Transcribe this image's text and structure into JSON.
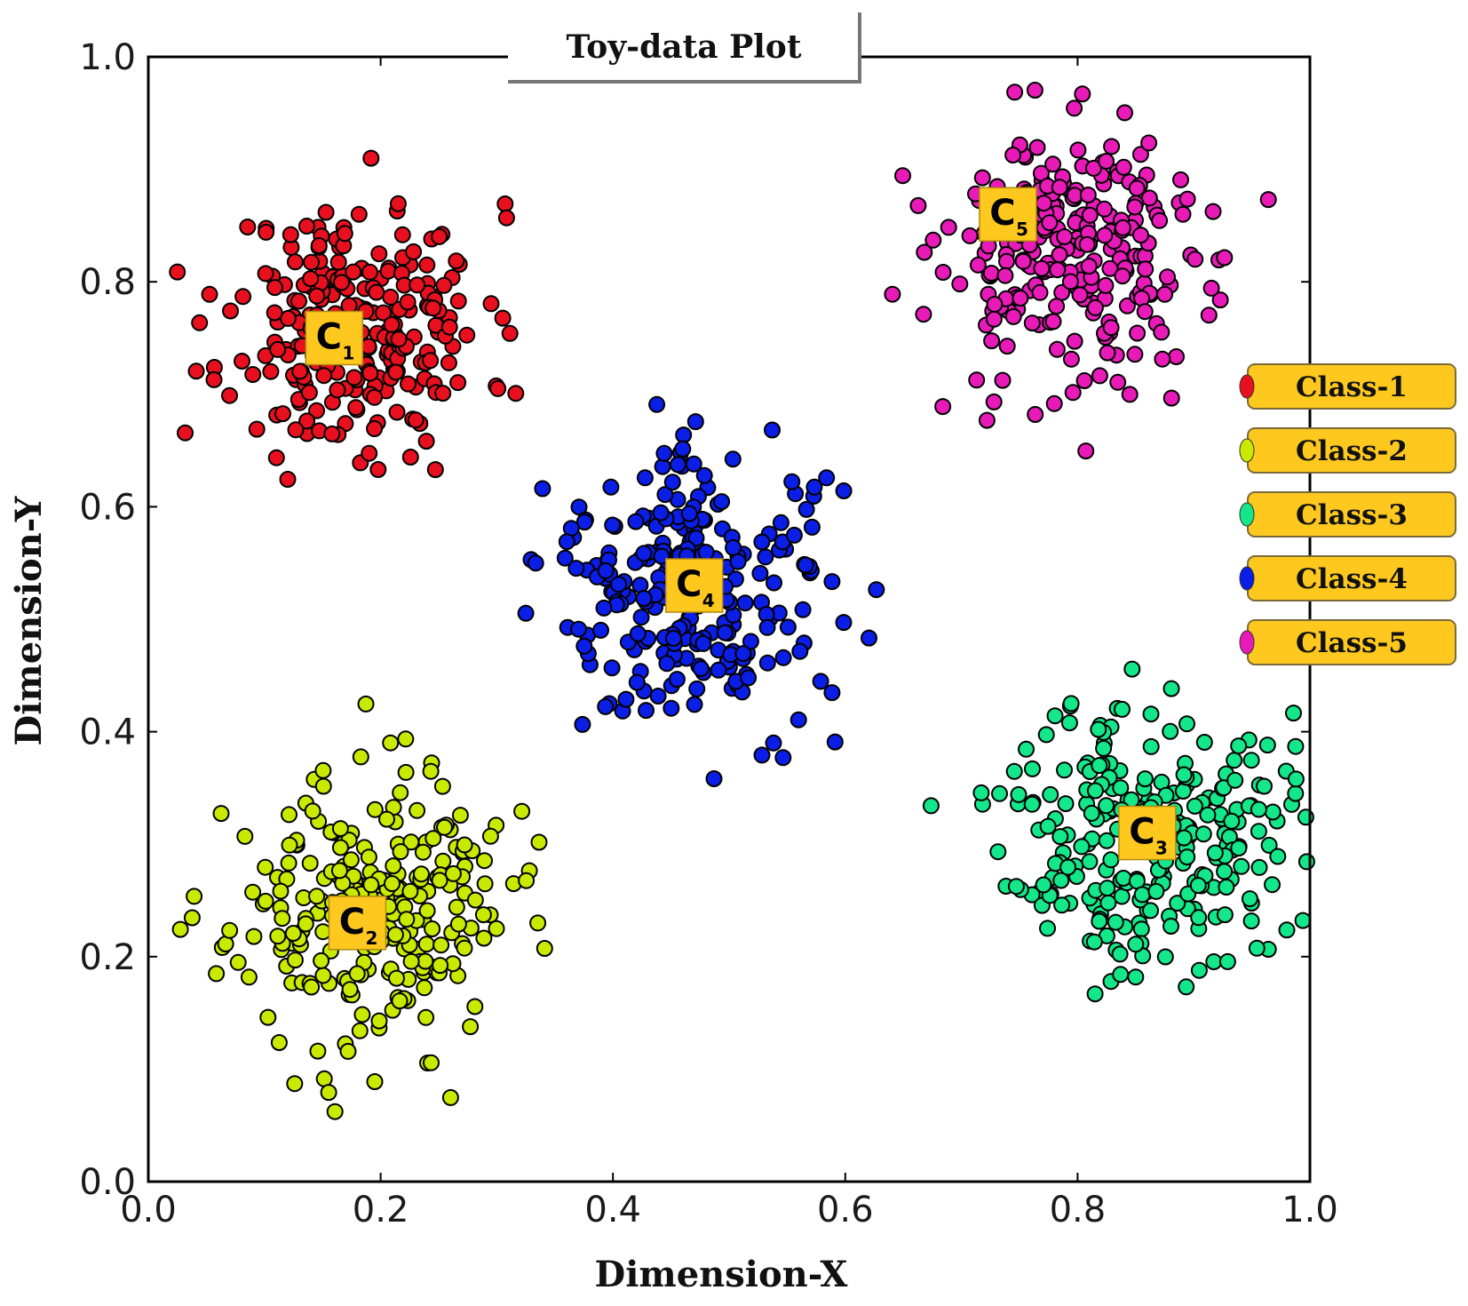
{
  "chart_data": {
    "type": "scatter",
    "title": "Toy-data Plot",
    "xlabel": "Dimension-X",
    "ylabel": "Dimension-Y",
    "xlim": [
      0.0,
      1.0
    ],
    "ylim": [
      0.0,
      1.0
    ],
    "x_ticks": [
      "0.0",
      "0.2",
      "0.4",
      "0.6",
      "0.8",
      "1.0"
    ],
    "y_ticks": [
      "0.0",
      "0.2",
      "0.4",
      "0.6",
      "0.8",
      "1.0"
    ],
    "grid": false,
    "legend_position": "right",
    "series": [
      {
        "name": "Class-1",
        "color": "#e8101e",
        "center": [
          0.18,
          0.76
        ],
        "spread": 0.055,
        "count": 260,
        "seed": 11,
        "cluster_label": {
          "letter": "C",
          "sub": "1",
          "x": 0.16,
          "y": 0.75
        }
      },
      {
        "name": "Class-2",
        "color": "#c9ea00",
        "center": [
          0.19,
          0.24
        ],
        "spread": 0.06,
        "count": 260,
        "seed": 23,
        "cluster_label": {
          "letter": "C",
          "sub": "2",
          "x": 0.18,
          "y": 0.23
        }
      },
      {
        "name": "Class-3",
        "color": "#14e68a",
        "center": [
          0.86,
          0.31
        ],
        "spread": 0.06,
        "count": 260,
        "seed": 37,
        "cluster_label": {
          "letter": "C",
          "sub": "3",
          "x": 0.86,
          "y": 0.31
        }
      },
      {
        "name": "Class-4",
        "color": "#0a1ee6",
        "center": [
          0.47,
          0.53
        ],
        "spread": 0.06,
        "count": 260,
        "seed": 41,
        "cluster_label": {
          "letter": "C",
          "sub": "4",
          "x": 0.47,
          "y": 0.53
        }
      },
      {
        "name": "Class-5",
        "color": "#e81ab8",
        "center": [
          0.8,
          0.82
        ],
        "spread": 0.06,
        "count": 260,
        "seed": 53,
        "cluster_label": {
          "letter": "C",
          "sub": "5",
          "x": 0.74,
          "y": 0.86
        }
      }
    ]
  }
}
